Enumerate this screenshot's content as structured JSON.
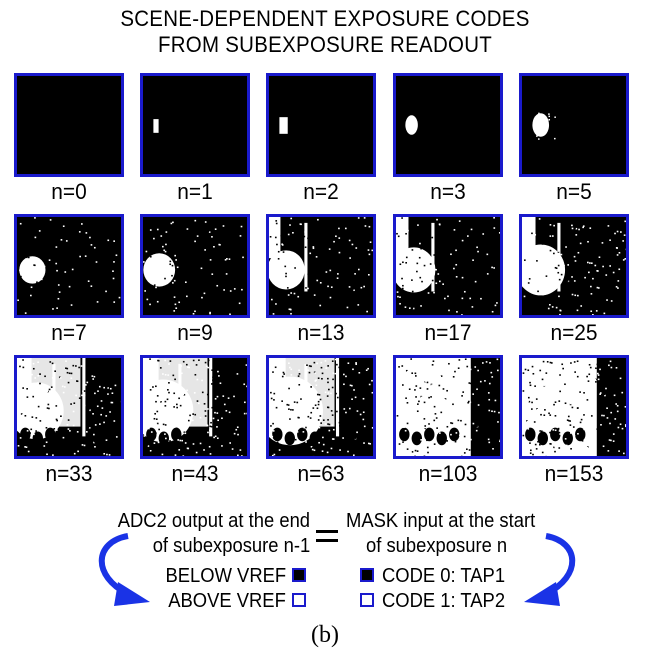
{
  "title": {
    "line1": "SCENE-DEPENDENT EXPOSURE CODES",
    "line2": "FROM SUBEXPOSURE READOUT"
  },
  "frames": [
    {
      "label": "n=0",
      "n": 0
    },
    {
      "label": "n=1",
      "n": 1
    },
    {
      "label": "n=2",
      "n": 2
    },
    {
      "label": "n=3",
      "n": 3
    },
    {
      "label": "n=5",
      "n": 5
    },
    {
      "label": "n=7",
      "n": 7
    },
    {
      "label": "n=9",
      "n": 9
    },
    {
      "label": "n=13",
      "n": 13
    },
    {
      "label": "n=17",
      "n": 17
    },
    {
      "label": "n=25",
      "n": 25
    },
    {
      "label": "n=33",
      "n": 33
    },
    {
      "label": "n=43",
      "n": 43
    },
    {
      "label": "n=63",
      "n": 63
    },
    {
      "label": "n=103",
      "n": 103
    },
    {
      "label": "n=153",
      "n": 153
    }
  ],
  "legend": {
    "left_line1": "ADC2 output at the end",
    "left_line2": "of subexposure n-1",
    "right_line1": "MASK input at the start",
    "right_line2": "of subexposure n",
    "below_vref": "BELOW VREF",
    "above_vref": "ABOVE VREF",
    "code0": "CODE 0: TAP1",
    "code1": "CODE 1: TAP2"
  },
  "caption": "(b)",
  "colors": {
    "frame_border": "#1a1acc",
    "arrow": "#1a33e6"
  }
}
